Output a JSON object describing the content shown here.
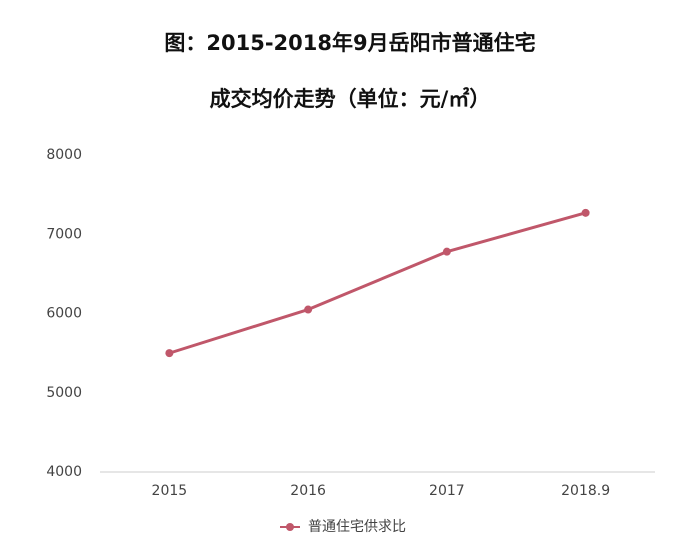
{
  "chart_data": {
    "type": "line",
    "title": "图：2015-2018年9月岳阳市普通住宅",
    "subtitle": "成交均价走势（单位：元/㎡）",
    "categories": [
      "2015",
      "2016",
      "2017",
      "2018.9"
    ],
    "series": [
      {
        "name": "普通住宅供求比",
        "color": "#c0576a",
        "values": [
          5500,
          6050,
          6780,
          7270
        ]
      }
    ],
    "ylim": [
      4000,
      8000
    ],
    "yticks": [
      4000,
      5000,
      6000,
      7000,
      8000
    ],
    "grid": false,
    "legend": "bottom"
  }
}
